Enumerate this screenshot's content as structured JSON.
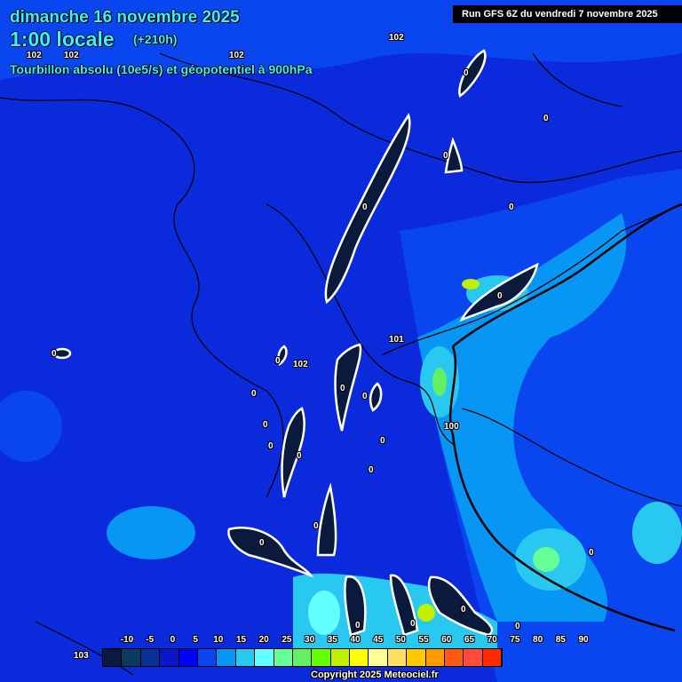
{
  "header": {
    "date": "dimanche 16 novembre 2025",
    "time": "1:00 locale",
    "lead": "(+210h)",
    "field": "Tourbillon absolu (10e5/s) et géopotentiel à 900hPa",
    "run": "Run GFS 6Z du vendredi 7 novembre 2025"
  },
  "geopotential_labels": [
    "102",
    "102",
    "102",
    "102",
    "101",
    "102",
    "100",
    "103"
  ],
  "vorticity_labels": [
    "0",
    "0",
    "0",
    "0",
    "0",
    "0",
    "0",
    "0",
    "0",
    "0",
    "0",
    "0",
    "0",
    "0",
    "0",
    "0",
    "0",
    "0",
    "0",
    "0",
    "0",
    "0",
    "0"
  ],
  "legend": {
    "ticks": [
      "-10",
      "-5",
      "0",
      "5",
      "10",
      "15",
      "20",
      "25",
      "30",
      "35",
      "40",
      "45",
      "50",
      "55",
      "60",
      "65",
      "70",
      "75",
      "80",
      "85",
      "90"
    ],
    "colors": [
      "#0a1a3c",
      "#0a3a5c",
      "#0a3096",
      "#0818c8",
      "#0000ff",
      "#0a46f0",
      "#0896f5",
      "#28c8f0",
      "#64ffff",
      "#64ff96",
      "#64f064",
      "#64ff00",
      "#c0f000",
      "#ffff00",
      "#ffff96",
      "#ffe060",
      "#ffc800",
      "#ff9a00",
      "#ff5a14",
      "#ff4a3c",
      "#ff2a00"
    ]
  },
  "copyright": "Copyright 2025 Meteociel.fr"
}
